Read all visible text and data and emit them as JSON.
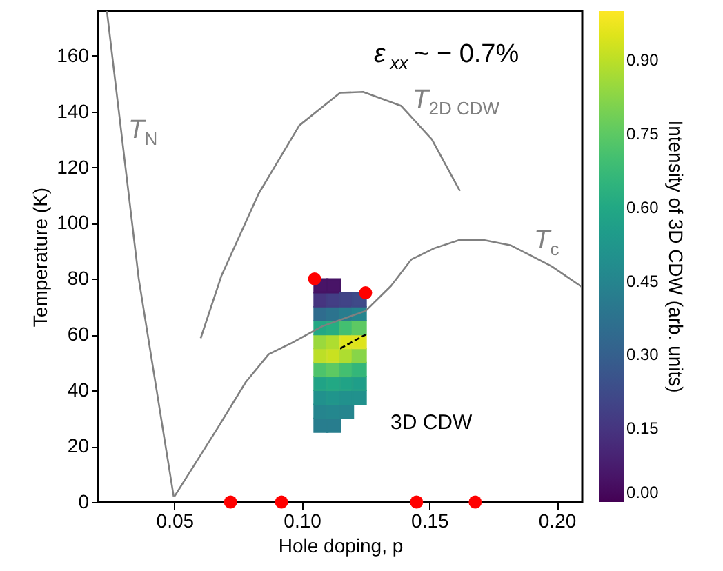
{
  "chart_data": {
    "type": "line",
    "xlabel": "Hole doping, p",
    "ylabel": "Temperature (K)",
    "clabel": "Intensity of 3D CDW (arb. units)",
    "xlim": [
      0.02,
      0.21
    ],
    "xticks": [
      0.05,
      {
        "value": 0.1,
        "label": "0.10"
      },
      0.15,
      {
        "value": 0.2,
        "label": "0.20"
      }
    ],
    "ylim": [
      0,
      176
    ],
    "yticks": [
      0,
      20,
      40,
      60,
      80,
      100,
      120,
      140,
      160
    ],
    "clim": [
      0,
      1
    ],
    "cticks": [
      {
        "value": 0,
        "label": "0.00"
      },
      0.15,
      {
        "value": 0.3,
        "label": "0.30"
      },
      0.45,
      {
        "value": 0.6,
        "label": "0.60"
      },
      0.75,
      {
        "value": 0.9,
        "label": "0.90"
      }
    ],
    "grid": false,
    "series": [
      {
        "color": "#808080",
        "x": [
          0.0235,
          0.036,
          0.0497
        ],
        "values": [
          176,
          80,
          2
        ]
      },
      {
        "color": "#808080",
        "x": [
          0.0603,
          0.0684,
          0.083,
          0.099,
          0.115,
          0.124,
          0.139,
          0.151,
          0.162
        ],
        "values": [
          58.7,
          81,
          110.5,
          135,
          146.7,
          147,
          142,
          130,
          111.5
        ]
      },
      {
        "color": "#808080",
        "x": [
          0.05,
          0.067,
          0.078,
          0.087,
          0.096,
          0.108,
          0.125,
          0.135,
          0.143,
          0.152,
          0.162,
          0.171,
          0.182,
          0.198,
          0.21
        ],
        "values": [
          2,
          26.6,
          43,
          53,
          57,
          63,
          68.5,
          77.5,
          87,
          91,
          94,
          94,
          92,
          84.5,
          77
        ]
      },
      {
        "type": "scatter",
        "marker": "square",
        "x": [
          0.1075,
          0.1075,
          0.1075,
          0.1075,
          0.1075,
          0.1075,
          0.1075,
          0.1075,
          0.1075,
          0.1075,
          0.1075,
          0.1125,
          0.1125,
          0.1125,
          0.1125,
          0.1125,
          0.1125,
          0.1125,
          0.1125,
          0.1125,
          0.1125,
          0.1125,
          0.1175,
          0.1175,
          0.1175,
          0.1175,
          0.1175,
          0.1175,
          0.1175,
          0.1175,
          0.1175,
          0.1225,
          0.1225,
          0.1225,
          0.1225,
          0.1225,
          0.1225,
          0.1225,
          0.1225
        ],
        "values": [
          27.5,
          32.5,
          37.5,
          42.5,
          47.5,
          52.5,
          57.5,
          62.5,
          67.5,
          72.5,
          77.5,
          27.5,
          32.5,
          37.5,
          42.5,
          47.5,
          52.5,
          57.5,
          62.5,
          67.5,
          72.5,
          77.5,
          32.5,
          37.5,
          42.5,
          47.5,
          52.5,
          57.5,
          62.5,
          67.5,
          72.5,
          37.5,
          42.5,
          47.5,
          52.5,
          57.5,
          62.5,
          67.5,
          72.5
        ],
        "colors": [
          "#287d8d",
          "#25858d",
          "#21918c",
          "#26a484",
          "#51c369",
          "#bdde2e",
          "#9dd83a",
          "#27a882",
          "#2f6c8d",
          "#45347e",
          "#451364",
          "#287d8d",
          "#25878d",
          "#22968a",
          "#27a882",
          "#5ec962",
          "#cae02c",
          "#b0dc30",
          "#28ad80",
          "#2c738e",
          "#423d82",
          "#451364",
          "#25858d",
          "#21918c",
          "#26a484",
          "#48be6e",
          "#b0dc30",
          "#dde32a",
          "#48be6e",
          "#287d8d",
          "#404385",
          "#21918c",
          "#249f86",
          "#37b678",
          "#8ad446",
          "#dde32a",
          "#5ec962",
          "#25858d",
          "#3e4987"
        ],
        "cvalues": [
          0.42,
          0.45,
          0.5,
          0.58,
          0.72,
          0.9,
          0.85,
          0.6,
          0.35,
          0.15,
          0.05,
          0.42,
          0.46,
          0.52,
          0.6,
          0.75,
          0.92,
          0.88,
          0.62,
          0.38,
          0.18,
          0.05,
          0.45,
          0.5,
          0.58,
          0.7,
          0.88,
          0.95,
          0.7,
          0.42,
          0.2,
          0.5,
          0.56,
          0.66,
          0.82,
          0.95,
          0.75,
          0.45,
          0.22
        ]
      },
      {
        "type": "line",
        "color": "#000000",
        "line_style": "dashed",
        "x": [
          0.115,
          0.125
        ],
        "values": [
          55,
          60
        ]
      },
      {
        "type": "scatter",
        "marker": "circle",
        "color": "#ff0000",
        "x": [
          0.072,
          0.092,
          0.145,
          0.168,
          0.105,
          0.125
        ],
        "values": [
          0,
          0,
          0,
          0,
          80,
          75
        ]
      }
    ],
    "annotations": [
      "T$_{N}$",
      "T$_{2D CDW}$",
      "T$_{c}$",
      "3D CDW",
      "ε$_{xx}$ ~ − 0.7%"
    ]
  }
}
